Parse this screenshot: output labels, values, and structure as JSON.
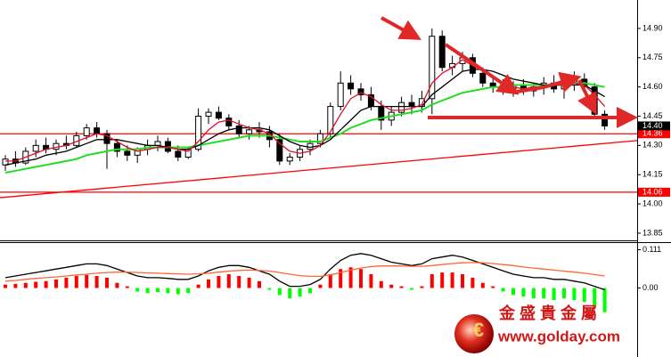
{
  "chart_data": [
    {
      "type": "candlestick",
      "open": [
        14.2,
        14.23,
        14.21,
        14.27,
        14.3,
        14.28,
        14.31,
        14.3,
        14.35,
        14.39,
        14.36,
        14.31,
        14.27,
        14.25,
        14.28,
        14.3,
        14.32,
        14.27,
        14.24,
        14.28,
        14.45,
        14.47,
        14.44,
        14.4,
        14.36,
        14.38,
        14.37,
        14.33,
        14.22,
        14.24,
        14.28,
        14.31,
        14.36,
        14.5,
        14.62,
        14.59,
        14.56,
        14.5,
        14.43,
        14.47,
        14.52,
        14.5,
        14.54,
        14.86,
        14.7,
        14.72,
        14.75,
        14.67,
        14.62,
        14.6,
        14.59,
        14.61,
        14.58,
        14.6,
        14.62,
        14.59,
        14.61,
        14.64,
        14.6,
        14.46
      ],
      "high": [
        14.25,
        14.27,
        14.29,
        14.33,
        14.34,
        14.33,
        14.35,
        14.37,
        14.41,
        14.42,
        14.38,
        14.33,
        14.3,
        14.29,
        14.33,
        14.35,
        14.34,
        14.3,
        14.29,
        14.49,
        14.49,
        14.5,
        14.46,
        14.43,
        14.4,
        14.42,
        14.4,
        14.36,
        14.26,
        14.3,
        14.33,
        14.38,
        14.52,
        14.68,
        14.66,
        14.62,
        14.6,
        14.53,
        14.5,
        14.55,
        14.56,
        14.58,
        14.9,
        14.89,
        14.76,
        14.78,
        14.77,
        14.7,
        14.66,
        14.64,
        14.63,
        14.64,
        14.62,
        14.65,
        14.66,
        14.64,
        14.68,
        14.67,
        14.62,
        14.48
      ],
      "low": [
        14.17,
        14.19,
        14.2,
        14.24,
        14.26,
        14.25,
        14.28,
        14.29,
        14.33,
        14.34,
        14.18,
        14.24,
        14.22,
        14.21,
        14.25,
        14.27,
        14.26,
        14.22,
        14.23,
        14.27,
        14.41,
        14.43,
        14.38,
        14.34,
        14.33,
        14.34,
        14.29,
        14.2,
        14.2,
        14.22,
        14.25,
        14.29,
        14.34,
        14.48,
        14.56,
        14.53,
        14.48,
        14.38,
        14.4,
        14.45,
        14.46,
        14.47,
        14.46,
        14.68,
        14.66,
        14.68,
        14.65,
        14.6,
        14.57,
        14.56,
        14.55,
        14.56,
        14.55,
        14.56,
        14.57,
        14.54,
        14.58,
        14.57,
        14.44,
        14.38
      ],
      "close": [
        14.23,
        14.21,
        14.27,
        14.3,
        14.28,
        14.31,
        14.3,
        14.35,
        14.39,
        14.36,
        14.31,
        14.27,
        14.25,
        14.28,
        14.3,
        14.32,
        14.27,
        14.24,
        14.28,
        14.45,
        14.47,
        14.44,
        14.4,
        14.36,
        14.38,
        14.37,
        14.33,
        14.22,
        14.24,
        14.28,
        14.31,
        14.36,
        14.5,
        14.62,
        14.59,
        14.56,
        14.5,
        14.43,
        14.47,
        14.52,
        14.5,
        14.54,
        14.86,
        14.7,
        14.72,
        14.75,
        14.67,
        14.62,
        14.6,
        14.59,
        14.61,
        14.58,
        14.6,
        14.62,
        14.59,
        14.61,
        14.64,
        14.6,
        14.46,
        14.4
      ],
      "up_color": "#ffffff",
      "down_color": "#000000",
      "series": [
        {
          "color": "#22dd22",
          "values": [
            14.16,
            14.17,
            14.18,
            14.19,
            14.2,
            14.21,
            14.22,
            14.23,
            14.25,
            14.26,
            14.27,
            14.28,
            14.28,
            14.28,
            14.29,
            14.29,
            14.29,
            14.29,
            14.29,
            14.3,
            14.31,
            14.32,
            14.33,
            14.34,
            14.35,
            14.35,
            14.35,
            14.34,
            14.33,
            14.32,
            14.32,
            14.32,
            14.34,
            14.36,
            14.39,
            14.41,
            14.43,
            14.44,
            14.45,
            14.46,
            14.47,
            14.48,
            14.51,
            14.53,
            14.55,
            14.57,
            14.58,
            14.59,
            14.6,
            14.6,
            14.61,
            14.61,
            14.61,
            14.61,
            14.61,
            14.61,
            14.62,
            14.62,
            14.61,
            14.6
          ]
        },
        {
          "color": "#000000",
          "values": [
            14.2,
            14.21,
            14.22,
            14.23,
            14.25,
            14.26,
            14.27,
            14.29,
            14.31,
            14.33,
            14.33,
            14.33,
            14.32,
            14.31,
            14.3,
            14.3,
            14.29,
            14.28,
            14.28,
            14.3,
            14.33,
            14.36,
            14.38,
            14.39,
            14.39,
            14.39,
            14.38,
            14.35,
            14.32,
            14.3,
            14.29,
            14.3,
            14.33,
            14.38,
            14.43,
            14.48,
            14.5,
            14.5,
            14.5,
            14.5,
            14.5,
            14.5,
            14.56,
            14.6,
            14.64,
            14.68,
            14.69,
            14.69,
            14.68,
            14.66,
            14.64,
            14.63,
            14.62,
            14.61,
            14.61,
            14.61,
            14.61,
            14.61,
            14.58,
            14.55
          ]
        },
        {
          "color": "#e0102a",
          "values": [
            14.22,
            14.22,
            14.24,
            14.26,
            14.28,
            14.29,
            14.3,
            14.32,
            14.34,
            14.36,
            14.35,
            14.32,
            14.29,
            14.27,
            14.28,
            14.29,
            14.29,
            14.28,
            14.27,
            14.32,
            14.38,
            14.42,
            14.43,
            14.41,
            14.39,
            14.38,
            14.36,
            14.31,
            14.27,
            14.26,
            14.27,
            14.3,
            14.37,
            14.46,
            14.54,
            14.57,
            14.55,
            14.51,
            14.48,
            14.48,
            14.49,
            14.51,
            14.62,
            14.67,
            14.7,
            14.74,
            14.71,
            14.68,
            14.65,
            14.61,
            14.6,
            14.59,
            14.6,
            14.6,
            14.61,
            14.61,
            14.62,
            14.61,
            14.56,
            14.5
          ]
        }
      ],
      "ylim": [
        13.813,
        15.046
      ],
      "yticks": [
        {
          "value": 14.9,
          "label": "14.90"
        },
        {
          "value": 14.75,
          "label": "14.75"
        },
        {
          "value": 14.6,
          "label": "14.60"
        },
        {
          "value": 14.45,
          "label": "14.45"
        },
        {
          "value": 14.3,
          "label": "14.30"
        },
        {
          "value": 14.15,
          "label": "14.15"
        },
        {
          "value": 14,
          "label": "14.00"
        },
        {
          "value": 13.85,
          "label": "13.85"
        }
      ],
      "levels": [
        {
          "value": 14.36,
          "label": "14.36"
        },
        {
          "value": 14.06,
          "label": "14.06"
        }
      ],
      "level_color": "#ff0000",
      "trendline": [
        14.032,
        14.325
      ],
      "last_price": {
        "value": 14.4,
        "label": "14.40"
      }
    },
    {
      "type": "macd",
      "values": [
        0.01,
        0.012,
        0.015,
        0.018,
        0.02,
        0.025,
        0.03,
        0.035,
        0.038,
        0.035,
        0.03,
        0.015,
        0.005,
        -0.01,
        -0.015,
        -0.012,
        -0.015,
        -0.018,
        -0.015,
        0.01,
        0.025,
        0.035,
        0.04,
        0.035,
        0.03,
        0.02,
        -0.005,
        -0.02,
        -0.03,
        -0.025,
        -0.015,
        0.01,
        0.04,
        0.055,
        0.06,
        0.055,
        0.04,
        0.02,
        0.01,
        0.005,
        -0.005,
        0.005,
        0.04,
        0.045,
        0.045,
        0.04,
        0.03,
        0.015,
        0.005,
        -0.01,
        -0.02,
        -0.025,
        -0.03,
        -0.03,
        -0.035,
        -0.03,
        -0.035,
        -0.04,
        -0.055,
        -0.07
      ],
      "up_color": "#ff0000",
      "down_color": "#00ff00",
      "series": [
        {
          "color": "#000000",
          "values": [
            0.03,
            0.035,
            0.04,
            0.045,
            0.05,
            0.055,
            0.06,
            0.065,
            0.07,
            0.07,
            0.065,
            0.055,
            0.045,
            0.035,
            0.03,
            0.03,
            0.028,
            0.025,
            0.025,
            0.035,
            0.05,
            0.06,
            0.065,
            0.065,
            0.06,
            0.05,
            0.04,
            0.02,
            0.005,
            0.005,
            0.01,
            0.025,
            0.055,
            0.08,
            0.095,
            0.1,
            0.095,
            0.085,
            0.075,
            0.07,
            0.065,
            0.07,
            0.085,
            0.09,
            0.095,
            0.09,
            0.08,
            0.07,
            0.06,
            0.05,
            0.04,
            0.035,
            0.03,
            0.03,
            0.025,
            0.025,
            0.02,
            0.015,
            0.005,
            -0.005
          ]
        },
        {
          "color": "#ff6633",
          "values": [
            0.02,
            0.022,
            0.025,
            0.028,
            0.03,
            0.032,
            0.035,
            0.038,
            0.04,
            0.043,
            0.045,
            0.046,
            0.046,
            0.045,
            0.044,
            0.043,
            0.042,
            0.041,
            0.04,
            0.041,
            0.043,
            0.046,
            0.049,
            0.051,
            0.052,
            0.051,
            0.049,
            0.045,
            0.04,
            0.036,
            0.034,
            0.034,
            0.038,
            0.045,
            0.052,
            0.058,
            0.062,
            0.064,
            0.064,
            0.064,
            0.063,
            0.063,
            0.065,
            0.068,
            0.071,
            0.073,
            0.074,
            0.073,
            0.071,
            0.068,
            0.065,
            0.061,
            0.058,
            0.055,
            0.052,
            0.049,
            0.046,
            0.043,
            0.039,
            0.035
          ]
        }
      ],
      "ylim": [
        -0.2,
        0.133
      ],
      "yticks": [
        0.111,
        {
          "value": 0,
          "label": "0.00"
        }
      ]
    }
  ],
  "logo": {
    "name": "金 盛 貴 金 屬",
    "url": "www.golday.com"
  }
}
